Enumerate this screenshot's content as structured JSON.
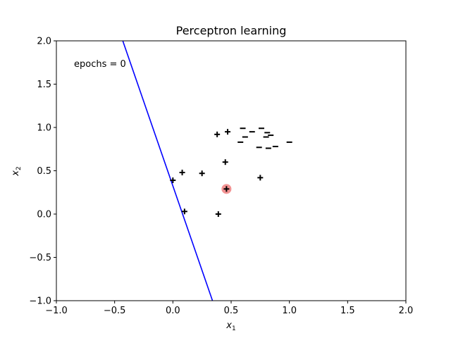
{
  "chart_data": {
    "type": "scatter",
    "title": "Perceptron learning",
    "xlabel": "x",
    "xlabel_sub": "1",
    "ylabel": "x",
    "ylabel_sub": "2",
    "xlim": [
      -1.0,
      2.0
    ],
    "ylim": [
      -1.0,
      2.0
    ],
    "x_ticks": [
      "−1.0",
      "−0.5",
      "0.0",
      "0.5",
      "1.0",
      "1.5",
      "2.0"
    ],
    "y_ticks": [
      "−1.0",
      "−0.5",
      "0.0",
      "0.5",
      "1.0",
      "1.5",
      "2.0"
    ],
    "grid": false,
    "annotation": "epochs = 0",
    "decision_boundary": {
      "color": "#0000ff",
      "points": [
        [
          -0.43,
          2.0
        ],
        [
          0.34,
          -1.0
        ]
      ]
    },
    "highlight": {
      "color": "#f08080",
      "point": [
        0.46,
        0.29
      ]
    },
    "series": [
      {
        "marker": "+",
        "color": "#000000",
        "points": [
          [
            0.0,
            0.39
          ],
          [
            0.08,
            0.48
          ],
          [
            0.25,
            0.47
          ],
          [
            0.1,
            0.03
          ],
          [
            0.38,
            0.92
          ],
          [
            0.47,
            0.95
          ],
          [
            0.45,
            0.6
          ],
          [
            0.46,
            0.29
          ],
          [
            0.39,
            0.0
          ],
          [
            0.75,
            0.42
          ]
        ]
      },
      {
        "marker": "_",
        "color": "#000000",
        "points": [
          [
            0.6,
            0.99
          ],
          [
            0.68,
            0.95
          ],
          [
            0.76,
            0.99
          ],
          [
            0.81,
            0.94
          ],
          [
            0.84,
            0.91
          ],
          [
            0.8,
            0.89
          ],
          [
            0.62,
            0.89
          ],
          [
            0.58,
            0.83
          ],
          [
            0.74,
            0.77
          ],
          [
            0.82,
            0.76
          ],
          [
            0.88,
            0.78
          ],
          [
            1.0,
            0.83
          ]
        ]
      }
    ]
  }
}
